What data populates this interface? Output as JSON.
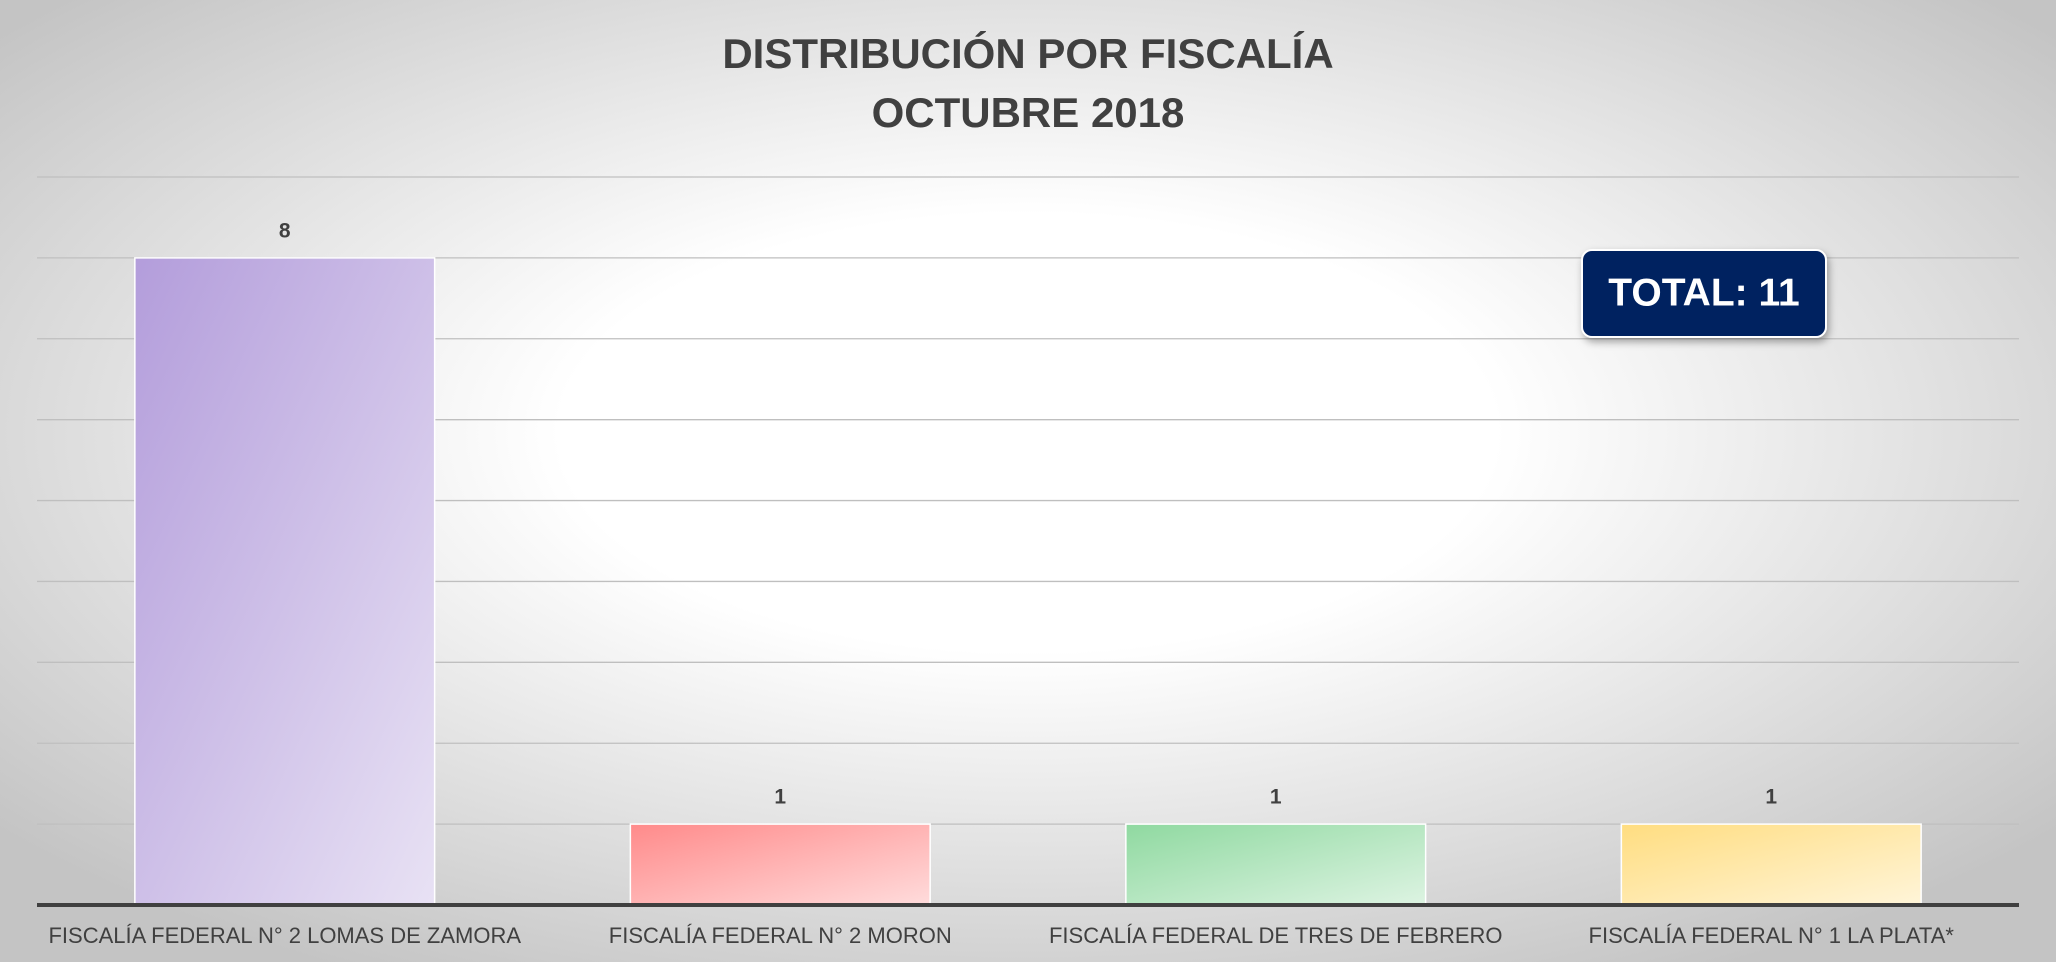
{
  "chart_data": {
    "type": "bar",
    "title": [
      "DISTRIBUCIÓN POR FISCALÍA",
      "OCTUBRE 2018"
    ],
    "categories": [
      "FISCALÍA FEDERAL N° 2 LOMAS DE ZAMORA",
      "FISCALÍA FEDERAL N° 2 MORON",
      "FISCALÍA FEDERAL DE TRES DE FEBRERO",
      "FISCALÍA FEDERAL N° 1 LA PLATA*"
    ],
    "values": [
      8,
      1,
      1,
      1
    ],
    "colors": [
      "#b39ddb",
      "#ff8a8a",
      "#8fd9a0",
      "#ffdd80"
    ],
    "ylim": [
      0,
      9
    ],
    "yticks": [
      0,
      1,
      2,
      3,
      4,
      5,
      6,
      7,
      8,
      9
    ],
    "grid": true,
    "annotation": "TOTAL: 11"
  }
}
